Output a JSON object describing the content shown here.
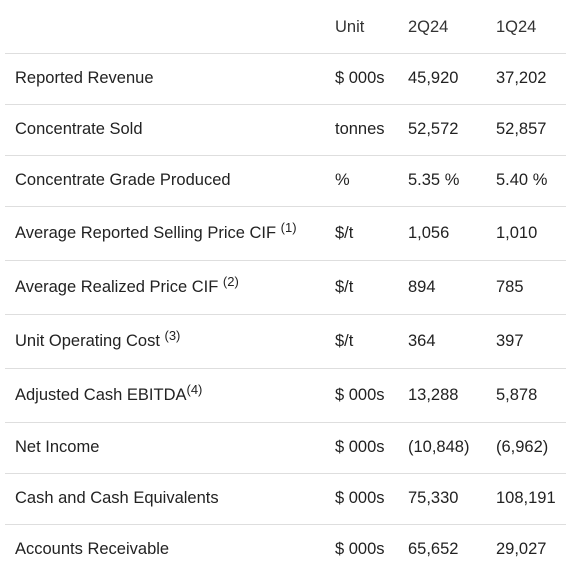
{
  "table": {
    "headers": {
      "metric": "",
      "unit": "Unit",
      "q2": "2Q24",
      "q1": "1Q24"
    },
    "rows": [
      {
        "metric": "Reported Revenue",
        "note": "",
        "unit": "$ 000s",
        "q2": "45,920",
        "q1": "37,202"
      },
      {
        "metric": "Concentrate Sold",
        "note": "",
        "unit": "tonnes",
        "q2": "52,572",
        "q1": "52,857"
      },
      {
        "metric": "Concentrate Grade Produced",
        "note": "",
        "unit": "%",
        "q2": "5.35 %",
        "q1": "5.40 %"
      },
      {
        "metric": "Average Reported Selling Price CIF",
        "note": "(1)",
        "unit": "$/t",
        "q2": "1,056",
        "q1": "1,010"
      },
      {
        "metric": "Average Realized Price CIF",
        "note": "(2)",
        "unit": "$/t",
        "q2": "894",
        "q1": "785"
      },
      {
        "metric": "Unit Operating Cost",
        "note": "(3)",
        "unit": "$/t",
        "q2": "364",
        "q1": "397"
      },
      {
        "metric": "Adjusted Cash EBITDA",
        "note": "(4)",
        "unit": "$ 000s",
        "q2": "13,288",
        "q1": "5,878"
      },
      {
        "metric": "Net Income",
        "note": "",
        "unit": "$ 000s",
        "q2": "(10,848)",
        "q1": "(6,962)"
      },
      {
        "metric": "Cash and Cash Equivalents",
        "note": "",
        "unit": "$ 000s",
        "q2": "75,330",
        "q1": "108,191"
      },
      {
        "metric": "Accounts Receivable",
        "note": "",
        "unit": "$ 000s",
        "q2": "65,652",
        "q1": "29,027"
      }
    ]
  }
}
